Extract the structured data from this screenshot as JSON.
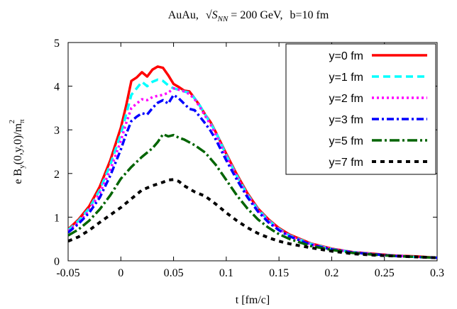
{
  "chart_data": {
    "type": "line",
    "title": {
      "prefix": "AuAu,",
      "sqrt": "√",
      "s": "S",
      "s_sub": "NN",
      "energy": " = 200 GeV,",
      "impact": "b=10 fm"
    },
    "xlabel": "t [fm/c]",
    "ylabel": {
      "main": "e B",
      "sub_y": "y",
      "mid": "(0,y,0)/m",
      "sub_pi": "π",
      "sup_2": "2"
    },
    "xlim": [
      -0.05,
      0.3
    ],
    "ylim": [
      0,
      5
    ],
    "xticks": [
      -0.05,
      0,
      0.05,
      0.1,
      0.15,
      0.2,
      0.25,
      0.3
    ],
    "xtick_labels": [
      "-0.05",
      "0",
      "0.05",
      "0.1",
      "0.15",
      "0.2",
      "0.25",
      "0.3"
    ],
    "yticks": [
      0,
      1,
      2,
      3,
      4,
      5
    ],
    "ytick_labels": [
      "0",
      "1",
      "2",
      "3",
      "4",
      "5"
    ],
    "legend_position": "top-right",
    "series": [
      {
        "name": "y=0 fm",
        "color": "#ff0000",
        "dash": "solid",
        "x": [
          -0.05,
          -0.04,
          -0.03,
          -0.02,
          -0.01,
          0,
          0.005,
          0.01,
          0.015,
          0.02,
          0.025,
          0.03,
          0.035,
          0.04,
          0.045,
          0.05,
          0.055,
          0.06,
          0.065,
          0.07,
          0.075,
          0.08,
          0.085,
          0.09,
          0.1,
          0.11,
          0.12,
          0.13,
          0.14,
          0.15,
          0.16,
          0.18,
          0.2,
          0.22,
          0.24,
          0.26,
          0.28,
          0.3
        ],
        "y": [
          0.72,
          0.95,
          1.25,
          1.7,
          2.3,
          3.05,
          3.55,
          4.12,
          4.2,
          4.32,
          4.22,
          4.38,
          4.45,
          4.42,
          4.25,
          4.05,
          3.98,
          3.9,
          3.88,
          3.72,
          3.55,
          3.35,
          3.18,
          2.95,
          2.45,
          1.98,
          1.55,
          1.2,
          0.95,
          0.75,
          0.6,
          0.4,
          0.28,
          0.2,
          0.16,
          0.12,
          0.1,
          0.07
        ]
      },
      {
        "name": "y=1 fm",
        "color": "#00ffff",
        "dash": "dashed",
        "x": [
          -0.05,
          -0.04,
          -0.03,
          -0.02,
          -0.01,
          0,
          0.005,
          0.01,
          0.015,
          0.02,
          0.025,
          0.03,
          0.035,
          0.04,
          0.045,
          0.05,
          0.055,
          0.06,
          0.065,
          0.07,
          0.075,
          0.08,
          0.085,
          0.09,
          0.1,
          0.11,
          0.12,
          0.13,
          0.14,
          0.15,
          0.16,
          0.18,
          0.2,
          0.22,
          0.24,
          0.26,
          0.28,
          0.3
        ],
        "y": [
          0.7,
          0.92,
          1.2,
          1.62,
          2.2,
          2.9,
          3.35,
          3.8,
          3.95,
          4.1,
          4.0,
          4.1,
          4.15,
          4.12,
          4.02,
          3.95,
          3.92,
          3.88,
          3.85,
          3.72,
          3.55,
          3.35,
          3.15,
          2.95,
          2.42,
          1.95,
          1.52,
          1.18,
          0.93,
          0.73,
          0.58,
          0.39,
          0.27,
          0.2,
          0.15,
          0.12,
          0.09,
          0.07
        ]
      },
      {
        "name": "y=2 fm",
        "color": "#ff00ff",
        "dash": "dotted",
        "x": [
          -0.05,
          -0.04,
          -0.03,
          -0.02,
          -0.01,
          0,
          0.005,
          0.01,
          0.015,
          0.02,
          0.025,
          0.03,
          0.035,
          0.04,
          0.045,
          0.05,
          0.055,
          0.06,
          0.065,
          0.07,
          0.075,
          0.08,
          0.085,
          0.09,
          0.1,
          0.11,
          0.12,
          0.13,
          0.14,
          0.15,
          0.16,
          0.18,
          0.2,
          0.22,
          0.24,
          0.26,
          0.28,
          0.3
        ],
        "y": [
          0.68,
          0.88,
          1.15,
          1.55,
          2.08,
          2.75,
          3.15,
          3.5,
          3.6,
          3.7,
          3.68,
          3.75,
          3.78,
          3.8,
          3.85,
          3.95,
          3.92,
          3.88,
          3.82,
          3.7,
          3.52,
          3.32,
          3.12,
          2.9,
          2.38,
          1.92,
          1.5,
          1.16,
          0.91,
          0.72,
          0.57,
          0.38,
          0.27,
          0.2,
          0.15,
          0.12,
          0.09,
          0.07
        ]
      },
      {
        "name": "y=3 fm",
        "color": "#0000ff",
        "dash": "dashdot",
        "x": [
          -0.05,
          -0.04,
          -0.03,
          -0.02,
          -0.01,
          0,
          0.005,
          0.01,
          0.015,
          0.02,
          0.025,
          0.03,
          0.035,
          0.04,
          0.045,
          0.05,
          0.055,
          0.06,
          0.065,
          0.07,
          0.075,
          0.08,
          0.085,
          0.09,
          0.1,
          0.11,
          0.12,
          0.13,
          0.14,
          0.15,
          0.16,
          0.18,
          0.2,
          0.22,
          0.24,
          0.26,
          0.28,
          0.3
        ],
        "y": [
          0.65,
          0.85,
          1.1,
          1.45,
          1.95,
          2.55,
          2.9,
          3.2,
          3.3,
          3.38,
          3.35,
          3.5,
          3.62,
          3.68,
          3.6,
          3.8,
          3.72,
          3.6,
          3.48,
          3.45,
          3.3,
          3.15,
          2.98,
          2.78,
          2.3,
          1.86,
          1.46,
          1.13,
          0.88,
          0.7,
          0.56,
          0.37,
          0.26,
          0.19,
          0.15,
          0.11,
          0.09,
          0.07
        ]
      },
      {
        "name": "y=5 fm",
        "color": "#006400",
        "dash": "dashdot-long",
        "x": [
          -0.05,
          -0.04,
          -0.03,
          -0.02,
          -0.01,
          0,
          0.01,
          0.02,
          0.03,
          0.035,
          0.04,
          0.045,
          0.05,
          0.055,
          0.06,
          0.07,
          0.08,
          0.09,
          0.1,
          0.11,
          0.12,
          0.13,
          0.14,
          0.15,
          0.16,
          0.18,
          0.2,
          0.22,
          0.24,
          0.26,
          0.28,
          0.3
        ],
        "y": [
          0.58,
          0.72,
          0.92,
          1.18,
          1.5,
          1.88,
          2.15,
          2.38,
          2.58,
          2.72,
          2.9,
          2.85,
          2.88,
          2.82,
          2.78,
          2.65,
          2.48,
          2.2,
          1.85,
          1.5,
          1.2,
          0.95,
          0.76,
          0.61,
          0.5,
          0.34,
          0.25,
          0.18,
          0.14,
          0.11,
          0.09,
          0.07
        ]
      },
      {
        "name": "y=7 fm",
        "color": "#000000",
        "dash": "dotted-heavy",
        "x": [
          -0.05,
          -0.04,
          -0.03,
          -0.02,
          -0.01,
          0,
          0.01,
          0.02,
          0.03,
          0.04,
          0.045,
          0.05,
          0.055,
          0.06,
          0.07,
          0.08,
          0.09,
          0.1,
          0.11,
          0.12,
          0.13,
          0.14,
          0.15,
          0.16,
          0.18,
          0.2,
          0.22,
          0.24,
          0.26,
          0.28,
          0.3
        ],
        "y": [
          0.45,
          0.55,
          0.7,
          0.88,
          1.05,
          1.22,
          1.42,
          1.62,
          1.72,
          1.8,
          1.85,
          1.86,
          1.82,
          1.72,
          1.58,
          1.48,
          1.3,
          1.1,
          0.92,
          0.76,
          0.63,
          0.53,
          0.45,
          0.39,
          0.3,
          0.22,
          0.16,
          0.13,
          0.11,
          0.09,
          0.07
        ]
      }
    ]
  }
}
